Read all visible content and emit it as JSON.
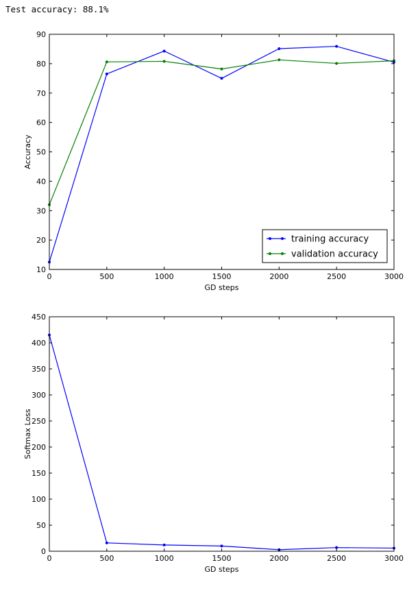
{
  "output": {
    "text": "Test accuracy: 88.1%"
  },
  "chart_data": [
    {
      "type": "line",
      "title": "",
      "xlabel": "GD steps",
      "ylabel": "Accuracy",
      "xlim": [
        0,
        3000
      ],
      "ylim": [
        10,
        90
      ],
      "xticks": [
        0,
        500,
        1000,
        1500,
        2000,
        2500,
        3000
      ],
      "yticks": [
        10,
        20,
        30,
        40,
        50,
        60,
        70,
        80,
        90
      ],
      "grid": false,
      "legend_position": "lower-right",
      "x": [
        0,
        500,
        1000,
        1500,
        2000,
        2500,
        3000
      ],
      "series": [
        {
          "name": "training accuracy",
          "color": "#0000ff",
          "values": [
            12.5,
            76.5,
            84.3,
            75.0,
            85.1,
            85.9,
            80.5
          ]
        },
        {
          "name": "validation accuracy",
          "color": "#008000",
          "values": [
            32.0,
            80.6,
            80.8,
            78.2,
            81.3,
            80.1,
            81.0
          ]
        }
      ]
    },
    {
      "type": "line",
      "title": "",
      "xlabel": "GD steps",
      "ylabel": "Softmax Loss",
      "xlim": [
        0,
        3000
      ],
      "ylim": [
        0,
        450
      ],
      "xticks": [
        0,
        500,
        1000,
        1500,
        2000,
        2500,
        3000
      ],
      "yticks": [
        0,
        50,
        100,
        150,
        200,
        250,
        300,
        350,
        400,
        450
      ],
      "grid": false,
      "x": [
        0,
        500,
        1000,
        1500,
        2000,
        2500,
        3000
      ],
      "series": [
        {
          "color": "#0000ff",
          "values": [
            415,
            16,
            12,
            10,
            3,
            7,
            6
          ]
        }
      ]
    }
  ]
}
